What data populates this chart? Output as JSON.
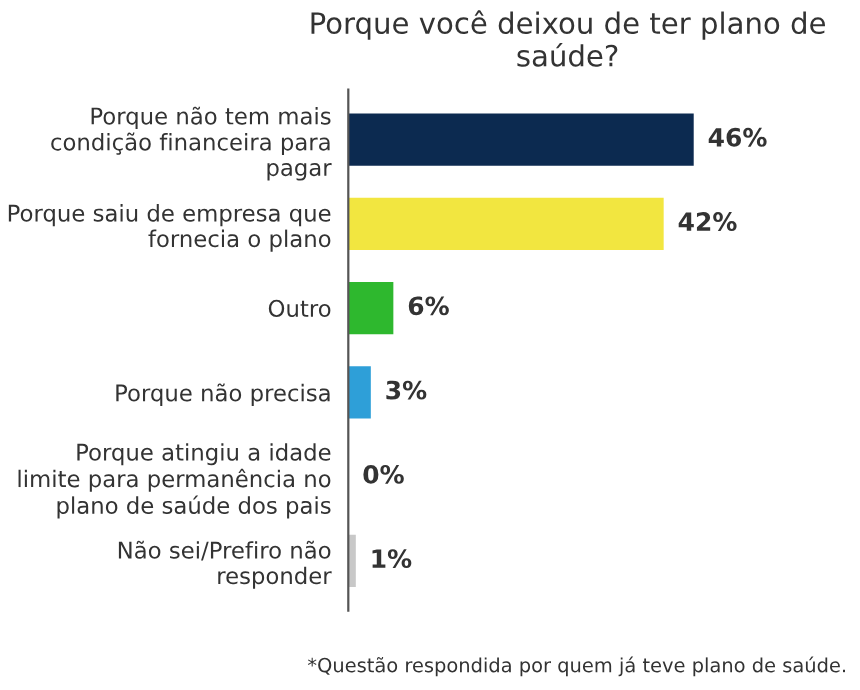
{
  "chart_data": {
    "type": "bar",
    "orientation": "horizontal",
    "title": "Porque você deixou de ter plano de\nsaúde?",
    "categories": [
      "Porque não tem mais\ncondição financeira para\npagar",
      "Porque saiu de empresa que\nfornecia o plano",
      "Outro",
      "Porque não precisa",
      "Porque atingiu a idade\nlimite para permanência no\nplano de saúde dos pais",
      "Não sei/Prefiro não\nresponder"
    ],
    "values": [
      46,
      42,
      6,
      3,
      0,
      1
    ],
    "colors": [
      "#0c2a50",
      "#f2e640",
      "#2eb82e",
      "#2e9fd8",
      "#2e9fd8",
      "#c8c8c8"
    ],
    "value_labels": [
      "46%",
      "42%",
      "6%",
      "3%",
      "0%",
      "1%"
    ],
    "annotations": [
      "*Questão respondida por quem já teve plano de saúde."
    ],
    "grid": false,
    "legend": false
  }
}
